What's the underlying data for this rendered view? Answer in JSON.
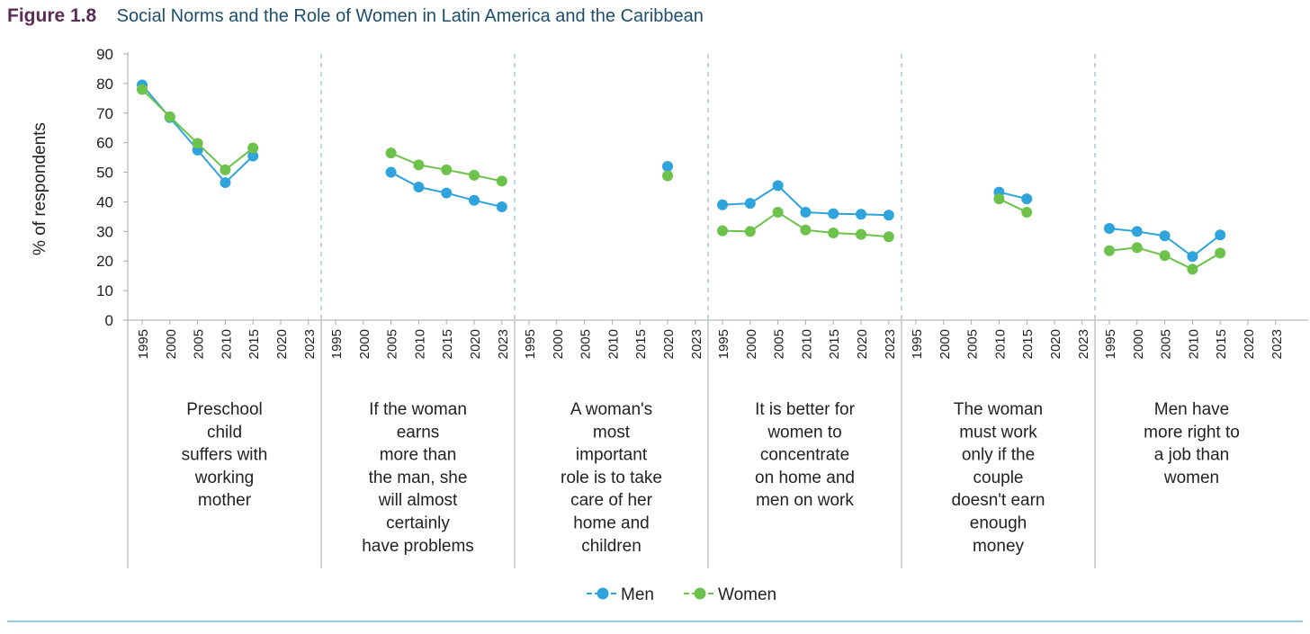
{
  "figure": {
    "number": "Figure 1.8",
    "title": "Social Norms and the Role of Women in Latin America and the Caribbean"
  },
  "chart_data": {
    "type": "line",
    "ylabel": "% of respondents",
    "ylim": [
      0,
      90
    ],
    "yticks": [
      0,
      10,
      20,
      30,
      40,
      50,
      60,
      70,
      80,
      90
    ],
    "years": [
      "1995",
      "2000",
      "2005",
      "2010",
      "2015",
      "2020",
      "2023"
    ],
    "colors": {
      "Men": "#2ea3dc",
      "Women": "#6cc24a"
    },
    "legend": {
      "position": "bottom-center",
      "entries": [
        "Men",
        "Women"
      ]
    },
    "panels": [
      {
        "label": [
          "Preschool",
          "child",
          "suffers with",
          "working",
          "mother"
        ],
        "series": [
          {
            "name": "Men",
            "values": [
              79.5,
              68.5,
              57.5,
              46.5,
              55.5,
              null,
              null
            ]
          },
          {
            "name": "Women",
            "values": [
              78,
              68.8,
              59.8,
              50.8,
              58.2,
              null,
              null
            ]
          }
        ]
      },
      {
        "label": [
          "If the woman",
          "earns",
          "more than",
          "the man, she",
          "will almost",
          "certainly",
          "have problems"
        ],
        "series": [
          {
            "name": "Men",
            "values": [
              null,
              null,
              50,
              45,
              43,
              40.5,
              38.3
            ]
          },
          {
            "name": "Women",
            "values": [
              null,
              null,
              56.5,
              52.5,
              50.8,
              49,
              47
            ]
          }
        ]
      },
      {
        "label": [
          "A woman's",
          "most",
          "important",
          "role is to take",
          "care of her",
          "home and",
          "children"
        ],
        "series": [
          {
            "name": "Men",
            "values": [
              null,
              null,
              null,
              null,
              null,
              52,
              null
            ]
          },
          {
            "name": "Women",
            "values": [
              null,
              null,
              null,
              null,
              null,
              48.8,
              null
            ]
          }
        ]
      },
      {
        "label": [
          "It is better for",
          "women to",
          "concentrate",
          "on home and",
          "men on work"
        ],
        "series": [
          {
            "name": "Men",
            "values": [
              39,
              39.5,
              45.5,
              36.5,
              36,
              35.8,
              35.5
            ]
          },
          {
            "name": "Women",
            "values": [
              30.2,
              30,
              36.5,
              30.5,
              29.5,
              29,
              28.2
            ]
          }
        ]
      },
      {
        "label": [
          "The woman",
          "must work",
          "only if the",
          "couple",
          "doesn't earn",
          "enough",
          "money"
        ],
        "series": [
          {
            "name": "Men",
            "values": [
              null,
              null,
              null,
              43.3,
              41,
              null,
              null
            ]
          },
          {
            "name": "Women",
            "values": [
              null,
              null,
              null,
              41,
              36.5,
              null,
              null
            ]
          }
        ]
      },
      {
        "label": [
          "Men have",
          "more right to",
          "a job than",
          "women"
        ],
        "series": [
          {
            "name": "Men",
            "values": [
              31,
              30,
              28.5,
              21.5,
              28.8,
              null,
              null
            ]
          },
          {
            "name": "Women",
            "values": [
              23.5,
              24.5,
              21.8,
              17.2,
              22.7,
              null,
              null
            ]
          }
        ]
      }
    ]
  }
}
